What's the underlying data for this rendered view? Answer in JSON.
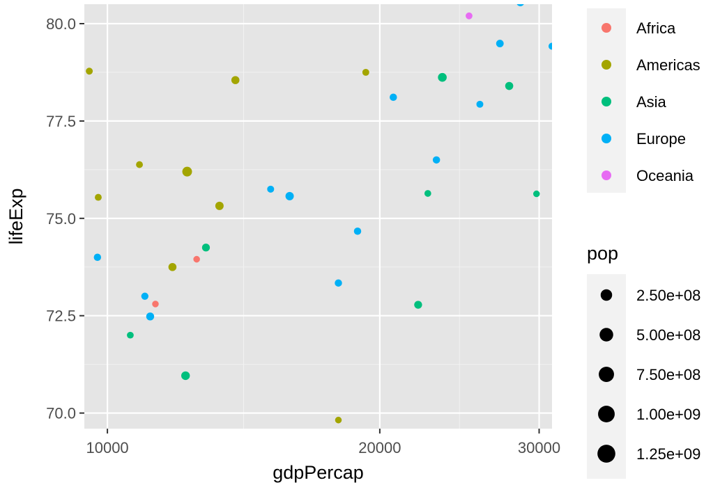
{
  "chart_data": {
    "type": "scatter",
    "title": "",
    "xlabel": "gdpPercap",
    "ylabel": "lifeExp",
    "x_scale": "log10",
    "xlim": [
      9430,
      31000
    ],
    "ylim": [
      69.6,
      80.5
    ],
    "x_ticks": [
      10000,
      20000,
      30000
    ],
    "x_tick_labels": [
      "10000",
      "20000",
      "30000"
    ],
    "y_ticks": [
      70.0,
      72.5,
      75.0,
      77.5,
      80.0
    ],
    "y_tick_labels": [
      "70.0",
      "72.5",
      "75.0",
      "77.5",
      "80.0"
    ],
    "grid": true,
    "panel_background": "#e5e5e5",
    "color_legend": {
      "title": "",
      "placement": "right",
      "entries": [
        {
          "name": "Africa",
          "color": "#F8766D"
        },
        {
          "name": "Americas",
          "color": "#A3A500"
        },
        {
          "name": "Asia",
          "color": "#00BF7D"
        },
        {
          "name": "Europe",
          "color": "#00B0F6"
        },
        {
          "name": "Oceania",
          "color": "#E76BF3"
        }
      ]
    },
    "size_legend": {
      "title": "pop",
      "placement": "right",
      "entries": [
        {
          "label": "2.50e+08",
          "value": 250000000
        },
        {
          "label": "5.00e+08",
          "value": 500000000
        },
        {
          "label": "7.50e+08",
          "value": 750000000
        },
        {
          "label": "1.00e+09",
          "value": 1000000000
        },
        {
          "label": "1.25e+09",
          "value": 1250000000
        }
      ]
    },
    "series": [
      {
        "continent": "Africa",
        "points": [
          {
            "x": 11300,
            "y": 72.8,
            "pop": 1200000
          },
          {
            "x": 12550,
            "y": 73.95,
            "pop": 1250000
          }
        ]
      },
      {
        "continent": "Americas",
        "points": [
          {
            "x": 9550,
            "y": 78.78,
            "pop": 4100000
          },
          {
            "x": 9770,
            "y": 75.54,
            "pop": 3400000
          },
          {
            "x": 10850,
            "y": 76.38,
            "pop": 3300000
          },
          {
            "x": 11800,
            "y": 73.75,
            "pop": 30000000
          },
          {
            "x": 12250,
            "y": 76.2,
            "pop": 110000000
          },
          {
            "x": 13300,
            "y": 75.32,
            "pop": 40000000
          },
          {
            "x": 13850,
            "y": 78.55,
            "pop": 30000000
          },
          {
            "x": 18000,
            "y": 69.82,
            "pop": 1300000
          },
          {
            "x": 19300,
            "y": 78.75,
            "pop": 4000000
          }
        ]
      },
      {
        "continent": "Asia",
        "points": [
          {
            "x": 10600,
            "y": 72.0,
            "pop": 2500000
          },
          {
            "x": 12200,
            "y": 70.96,
            "pop": 52000000
          },
          {
            "x": 12850,
            "y": 74.25,
            "pop": 23000000
          },
          {
            "x": 22050,
            "y": 72.78,
            "pop": 24000000
          },
          {
            "x": 22600,
            "y": 75.64,
            "pop": 2100000
          },
          {
            "x": 23450,
            "y": 78.62,
            "pop": 58000000
          },
          {
            "x": 27800,
            "y": 78.4,
            "pop": 30000000
          },
          {
            "x": 29800,
            "y": 75.63,
            "pop": 1000000
          }
        ]
      },
      {
        "continent": "Europe",
        "points": [
          {
            "x": 9750,
            "y": 74.0,
            "pop": 10000000
          },
          {
            "x": 11000,
            "y": 73.0,
            "pop": 8000000
          },
          {
            "x": 11150,
            "y": 72.48,
            "pop": 25000000
          },
          {
            "x": 15150,
            "y": 75.75,
            "pop": 4500000
          },
          {
            "x": 15900,
            "y": 75.57,
            "pop": 40000000
          },
          {
            "x": 18000,
            "y": 73.34,
            "pop": 10000000
          },
          {
            "x": 18900,
            "y": 74.67,
            "pop": 10000000
          },
          {
            "x": 20700,
            "y": 78.11,
            "pop": 10000000
          },
          {
            "x": 23100,
            "y": 76.5,
            "pop": 10000000
          },
          {
            "x": 25800,
            "y": 77.93,
            "pop": 4000000
          },
          {
            "x": 27150,
            "y": 79.49,
            "pop": 15000000
          },
          {
            "x": 28600,
            "y": 80.55,
            "pop": 30000000
          },
          {
            "x": 31000,
            "y": 79.42,
            "pop": 5000000
          }
        ]
      },
      {
        "continent": "Oceania",
        "points": [
          {
            "x": 25100,
            "y": 80.2,
            "pop": 3000000
          }
        ]
      }
    ]
  }
}
